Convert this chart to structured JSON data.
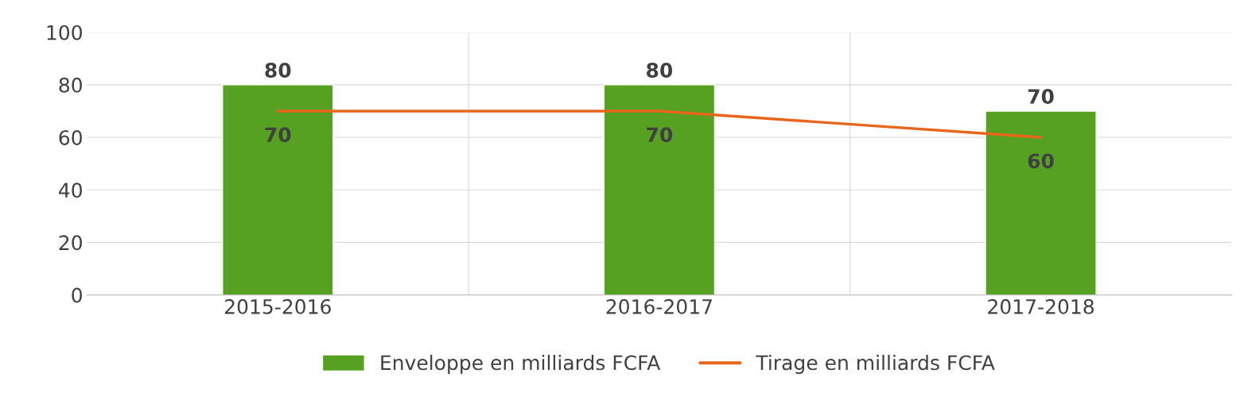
{
  "chart_data": {
    "type": "bar",
    "categories": [
      "2015-2016",
      "2016-2017",
      "2017-2018"
    ],
    "series": [
      {
        "name": "Enveloppe en milliards FCFA",
        "color": "#56a121",
        "values": [
          80,
          80,
          70
        ]
      },
      {
        "name": "Tirage en milliards FCFA",
        "type": "line",
        "color": "#e8661c",
        "values": [
          70,
          70,
          60
        ]
      }
    ],
    "ylim": [
      0,
      100
    ],
    "yticks": [
      0,
      20,
      40,
      60,
      80,
      100
    ],
    "grid": true,
    "legend": "bottom",
    "data_labels": true
  }
}
